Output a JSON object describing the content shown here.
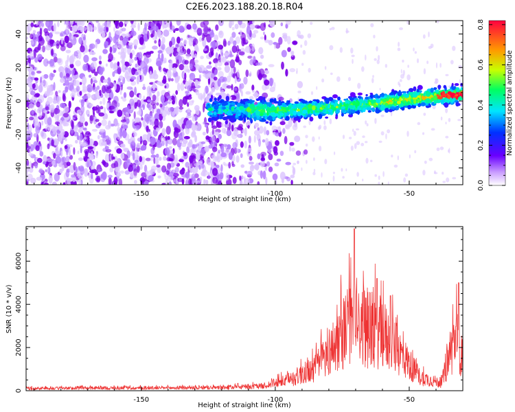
{
  "figure": {
    "title": "C2E6.2023.188.20.18.R04"
  },
  "chart_data": [
    {
      "type": "heatmap",
      "xlabel": "Height of straight line (km)",
      "ylabel": "Frequency (Hz)",
      "xlim": [
        -193,
        -30
      ],
      "ylim": [
        -50,
        48
      ],
      "xticks": [
        -150,
        -100,
        -50
      ],
      "yticks": [
        -40,
        -20,
        0,
        20,
        40
      ],
      "colorbar": {
        "label": "Normalized spectral amplitude",
        "range": [
          0.0,
          0.82
        ],
        "ticks": [
          0.0,
          0.2,
          0.4,
          0.6,
          0.8
        ],
        "colormap": [
          "#ffffff",
          "#6a00ff",
          "#0030ff",
          "#00e5ff",
          "#00ff60",
          "#c8ff00",
          "#ff9a00",
          "#ff0040"
        ]
      },
      "ridge": [
        {
          "x": -120,
          "y": -5
        },
        {
          "x": -100,
          "y": -6
        },
        {
          "x": -80,
          "y": -4
        },
        {
          "x": -60,
          "y": -1
        },
        {
          "x": -45,
          "y": 2
        },
        {
          "x": -30,
          "y": 4
        }
      ],
      "noise_region_x": [
        -193,
        -95
      ],
      "line_color": "#7a00e6"
    },
    {
      "type": "line",
      "xlabel": "Height of straight line (km)",
      "ylabel": "SNR (10 * v/v)",
      "xlim": [
        -193,
        -30
      ],
      "ylim": [
        0,
        7600
      ],
      "xticks": [
        -150,
        -100,
        -50
      ],
      "yticks": [
        0,
        2000,
        4000,
        6000
      ],
      "line_color": "#ee3333",
      "envelope": [
        {
          "x": -193,
          "y": 150
        },
        {
          "x": -120,
          "y": 200
        },
        {
          "x": -105,
          "y": 300
        },
        {
          "x": -95,
          "y": 700
        },
        {
          "x": -85,
          "y": 1500
        },
        {
          "x": -78,
          "y": 3000
        },
        {
          "x": -72,
          "y": 4500
        },
        {
          "x": -68,
          "y": 4200
        },
        {
          "x": -60,
          "y": 3800
        },
        {
          "x": -52,
          "y": 2200
        },
        {
          "x": -46,
          "y": 900
        },
        {
          "x": -38,
          "y": 500
        },
        {
          "x": -34,
          "y": 2800
        },
        {
          "x": -32,
          "y": 3800
        },
        {
          "x": -30,
          "y": 1800
        }
      ],
      "peaks": [
        {
          "x": -70.5,
          "y": 7500
        },
        {
          "x": -62,
          "y": 5200
        },
        {
          "x": -57,
          "y": 4400
        },
        {
          "x": -31.5,
          "y": 5000
        }
      ]
    }
  ]
}
